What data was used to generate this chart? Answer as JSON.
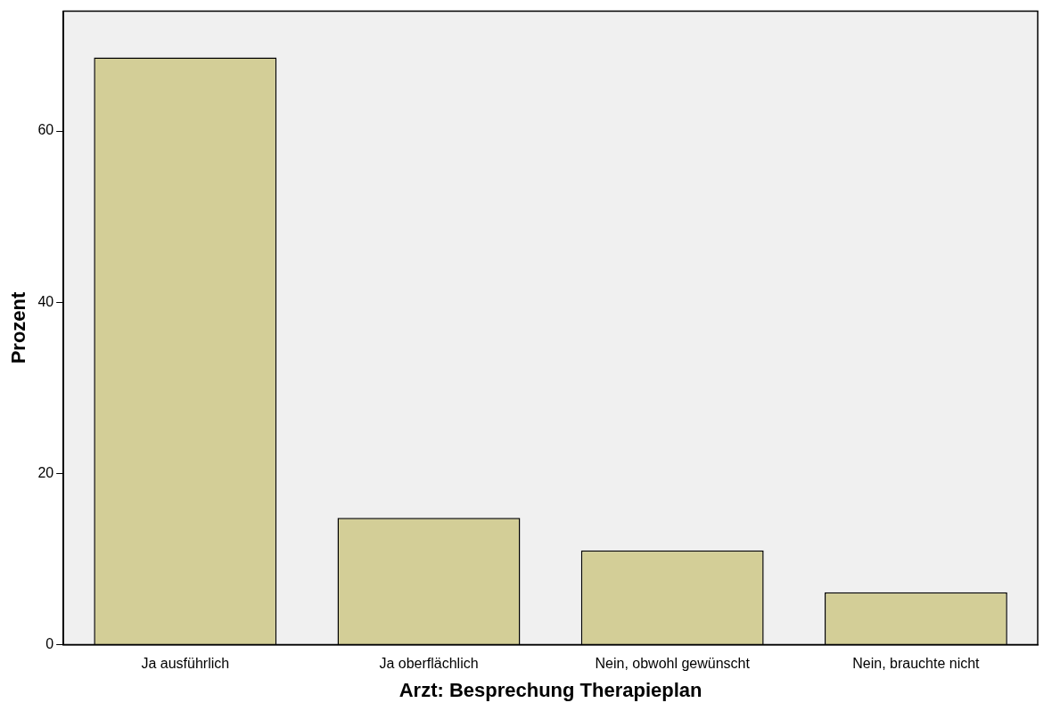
{
  "chart_data": {
    "type": "bar",
    "xlabel": "Arzt: Besprechung Therapieplan",
    "ylabel": "Prozent",
    "categories": [
      "Ja ausführlich",
      "Ja oberflächlich",
      "Nein, obwohl gewünscht",
      "Nein, brauchte nicht"
    ],
    "values": [
      68.6,
      14.8,
      11.0,
      6.1
    ],
    "color": "#d3ce97",
    "ylim": [
      0,
      74
    ],
    "yticks": [
      0,
      20,
      40,
      60
    ],
    "grid": false,
    "legend": false
  }
}
